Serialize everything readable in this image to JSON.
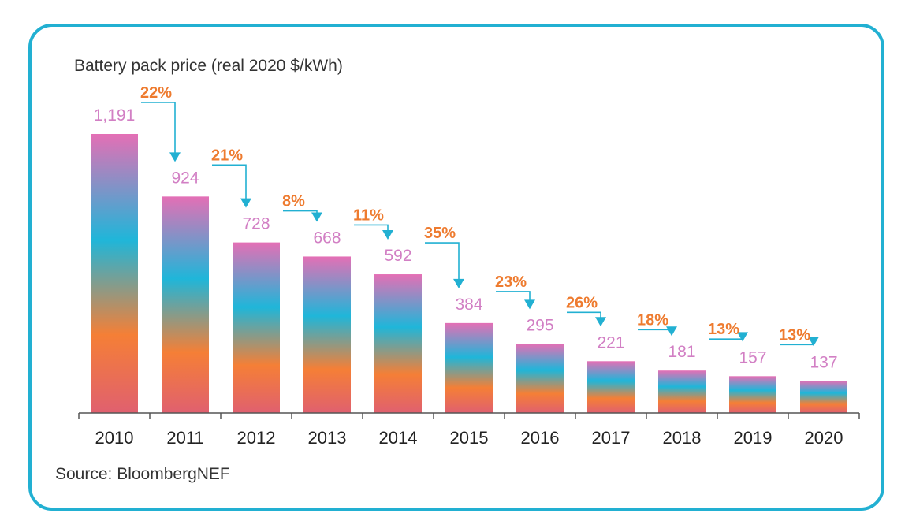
{
  "chart_data": {
    "type": "bar",
    "title": "Battery pack price (real 2020 $/kWh)",
    "source": "Source: BloombergNEF",
    "categories": [
      "2010",
      "2011",
      "2012",
      "2013",
      "2014",
      "2015",
      "2016",
      "2017",
      "2018",
      "2019",
      "2020"
    ],
    "values": [
      1191,
      924,
      728,
      668,
      592,
      384,
      295,
      221,
      181,
      157,
      137
    ],
    "value_labels": [
      "1,191",
      "924",
      "728",
      "668",
      "592",
      "384",
      "295",
      "221",
      "181",
      "157",
      "137"
    ],
    "annotations": [
      {
        "label": "22%",
        "from": "2010",
        "to": "2011"
      },
      {
        "label": "21%",
        "from": "2011",
        "to": "2012"
      },
      {
        "label": "8%",
        "from": "2012",
        "to": "2013"
      },
      {
        "label": "11%",
        "from": "2013",
        "to": "2014"
      },
      {
        "label": "35%",
        "from": "2014",
        "to": "2015"
      },
      {
        "label": "23%",
        "from": "2015",
        "to": "2016"
      },
      {
        "label": "26%",
        "from": "2016",
        "to": "2017"
      },
      {
        "label": "18%",
        "from": "2017",
        "to": "2018"
      },
      {
        "label": "13%",
        "from": "2018",
        "to": "2019"
      },
      {
        "label": "13%",
        "from": "2019",
        "to": "2020"
      }
    ],
    "ylim": [
      0,
      1191
    ],
    "grid": false,
    "colors": {
      "frame": "#22b0d2",
      "value_label": "#d27fc4",
      "percent_label": "#ee7b2f",
      "arrow": "#22b0d2",
      "axis": "#555555",
      "gradient_stops": [
        "#e46fb5",
        "#1fb6d9",
        "#f57f36",
        "#e0606f"
      ]
    }
  }
}
